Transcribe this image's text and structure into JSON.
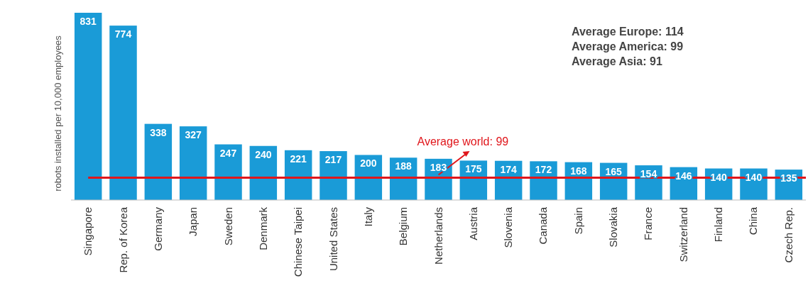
{
  "chart_data": {
    "type": "bar",
    "ylabel": "robots installed per 10,000 employees",
    "categories": [
      "Singapore",
      "Rep. of Korea",
      "Germany",
      "Japan",
      "Sweden",
      "Denmark",
      "Chinese Taipei",
      "United States",
      "Italy",
      "Belgium",
      "Netherlands",
      "Austria",
      "Slovenia",
      "Canada",
      "Spain",
      "Slovakia",
      "France",
      "Switzerland",
      "Finland",
      "China",
      "Czech Rep."
    ],
    "values": [
      831,
      774,
      338,
      327,
      247,
      240,
      221,
      217,
      200,
      188,
      183,
      175,
      174,
      172,
      168,
      165,
      154,
      146,
      140,
      140,
      135
    ],
    "color": "#1a9bd7",
    "data_labels": true,
    "ref_lines": [
      {
        "axis": "y",
        "value": 99,
        "label": "Average world: 99",
        "color": "#e0161b"
      }
    ],
    "annotations": [
      "Average Europe: 114",
      "Average America: 99",
      "Average Asia: 91"
    ]
  }
}
